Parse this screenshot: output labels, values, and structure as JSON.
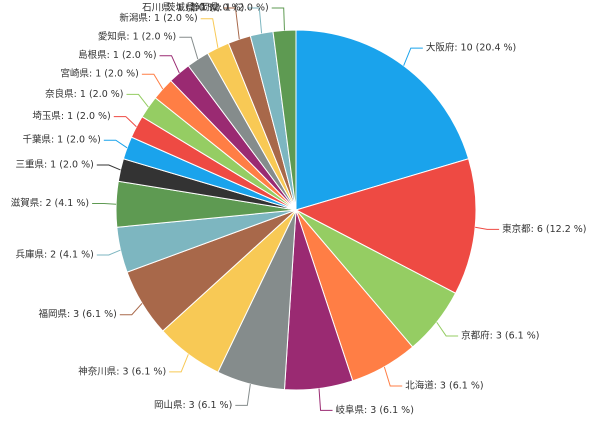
{
  "chart_data": {
    "type": "pie",
    "values": [
      10,
      6,
      3,
      3,
      3,
      3,
      3,
      3,
      2,
      2,
      1,
      1,
      1,
      1,
      1,
      1,
      1,
      1,
      1,
      1,
      1
    ],
    "value_labels": [
      "大阪府: 10 (20.4 %)",
      "東京都: 6 (12.2 %)",
      "京都府: 3 (6.1 %)",
      "北海道: 3 (6.1 %)",
      "岐阜県: 3 (6.1 %)",
      "岡山県: 3 (6.1 %)",
      "神奈川県: 3 (6.1 %)",
      "福岡県: 3 (6.1 %)",
      "兵庫県: 2 (4.1 %)",
      "滋賀県: 2 (4.1 %)",
      "三重県: 1 (2.0 %)",
      "千葉県: 1 (2.0 %)",
      "埼玉県: 1 (2.0 %)",
      "奈良県: 1 (2.0 %)",
      "宮崎県: 1 (2.0 %)",
      "島根県: 1 (2.0 %)",
      "愛知県: 1 (2.0 %)",
      "新潟県: 1 (2.0 %)",
      "石川県: 1 (2.0 %)",
      "茨城県: 1 (2.0 %)",
      "静岡県: 1 (2.0 %)"
    ],
    "colors": [
      "#1aa3ec",
      "#ee4a43",
      "#95cd63",
      "#ff7e45",
      "#9a2a72",
      "#858c8c",
      "#f8c955",
      "#a8684a",
      "#7db6c0",
      "#5e9a52",
      "#333333",
      "#1aa3ec",
      "#ee4a43",
      "#95cd63",
      "#ff7e45",
      "#9a2a72",
      "#858c8c",
      "#f8c955",
      "#a8684a",
      "#7db6c0",
      "#5e9a52"
    ]
  }
}
